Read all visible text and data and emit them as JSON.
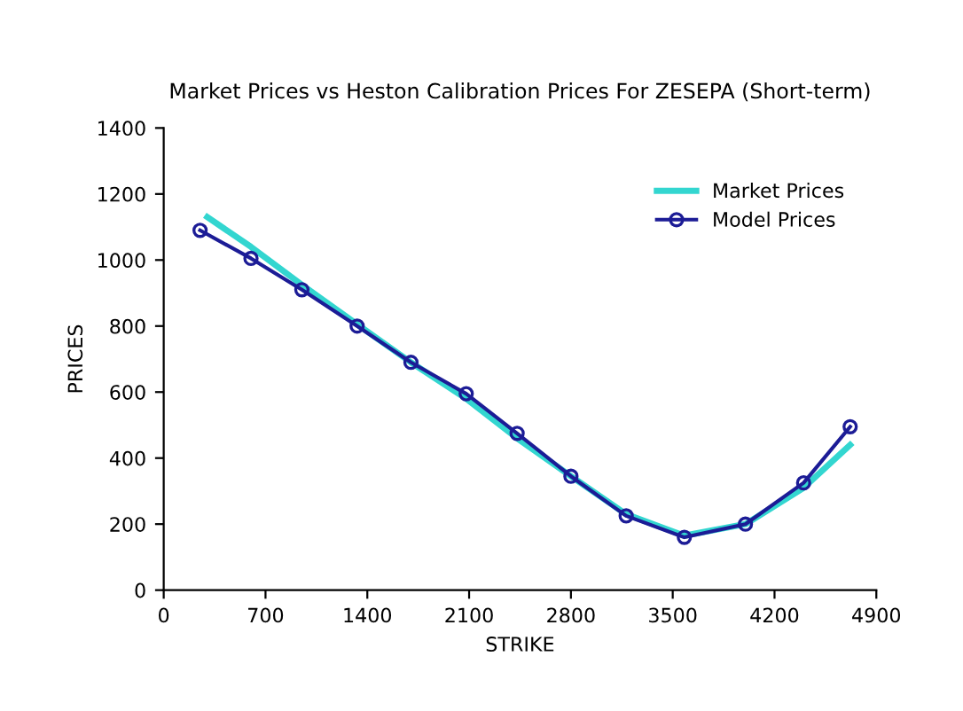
{
  "chart_data": {
    "type": "line",
    "title": "Market Prices vs Heston Calibration Prices For ZESEPA (Short-term)",
    "xlabel": "STRIKE",
    "ylabel": "PRICES",
    "xlim": [
      0,
      4900
    ],
    "xticks": [
      0,
      700,
      1400,
      2100,
      2800,
      3500,
      4200,
      4900
    ],
    "ylim": [
      0,
      1400
    ],
    "yticks": [
      0,
      200,
      400,
      600,
      800,
      1000,
      1200,
      1400
    ],
    "grid": false,
    "legend": "top right",
    "series": [
      {
        "name": "Market Prices",
        "color": "#33d6d0",
        "marker": "none",
        "x": [
          300,
          600,
          950,
          1330,
          1700,
          2080,
          2430,
          2800,
          3180,
          3580,
          4000,
          4400,
          4720
        ],
        "values": [
          1130,
          1040,
          925,
          805,
          690,
          580,
          460,
          345,
          230,
          165,
          200,
          310,
          440
        ]
      },
      {
        "name": "Model Prices",
        "color": "#1c1c96",
        "marker": "circle",
        "x": [
          250,
          600,
          950,
          1330,
          1700,
          2080,
          2430,
          2800,
          3180,
          3580,
          4000,
          4400,
          4720
        ],
        "values": [
          1090,
          1005,
          910,
          800,
          690,
          595,
          475,
          345,
          225,
          160,
          200,
          325,
          495
        ]
      }
    ]
  }
}
